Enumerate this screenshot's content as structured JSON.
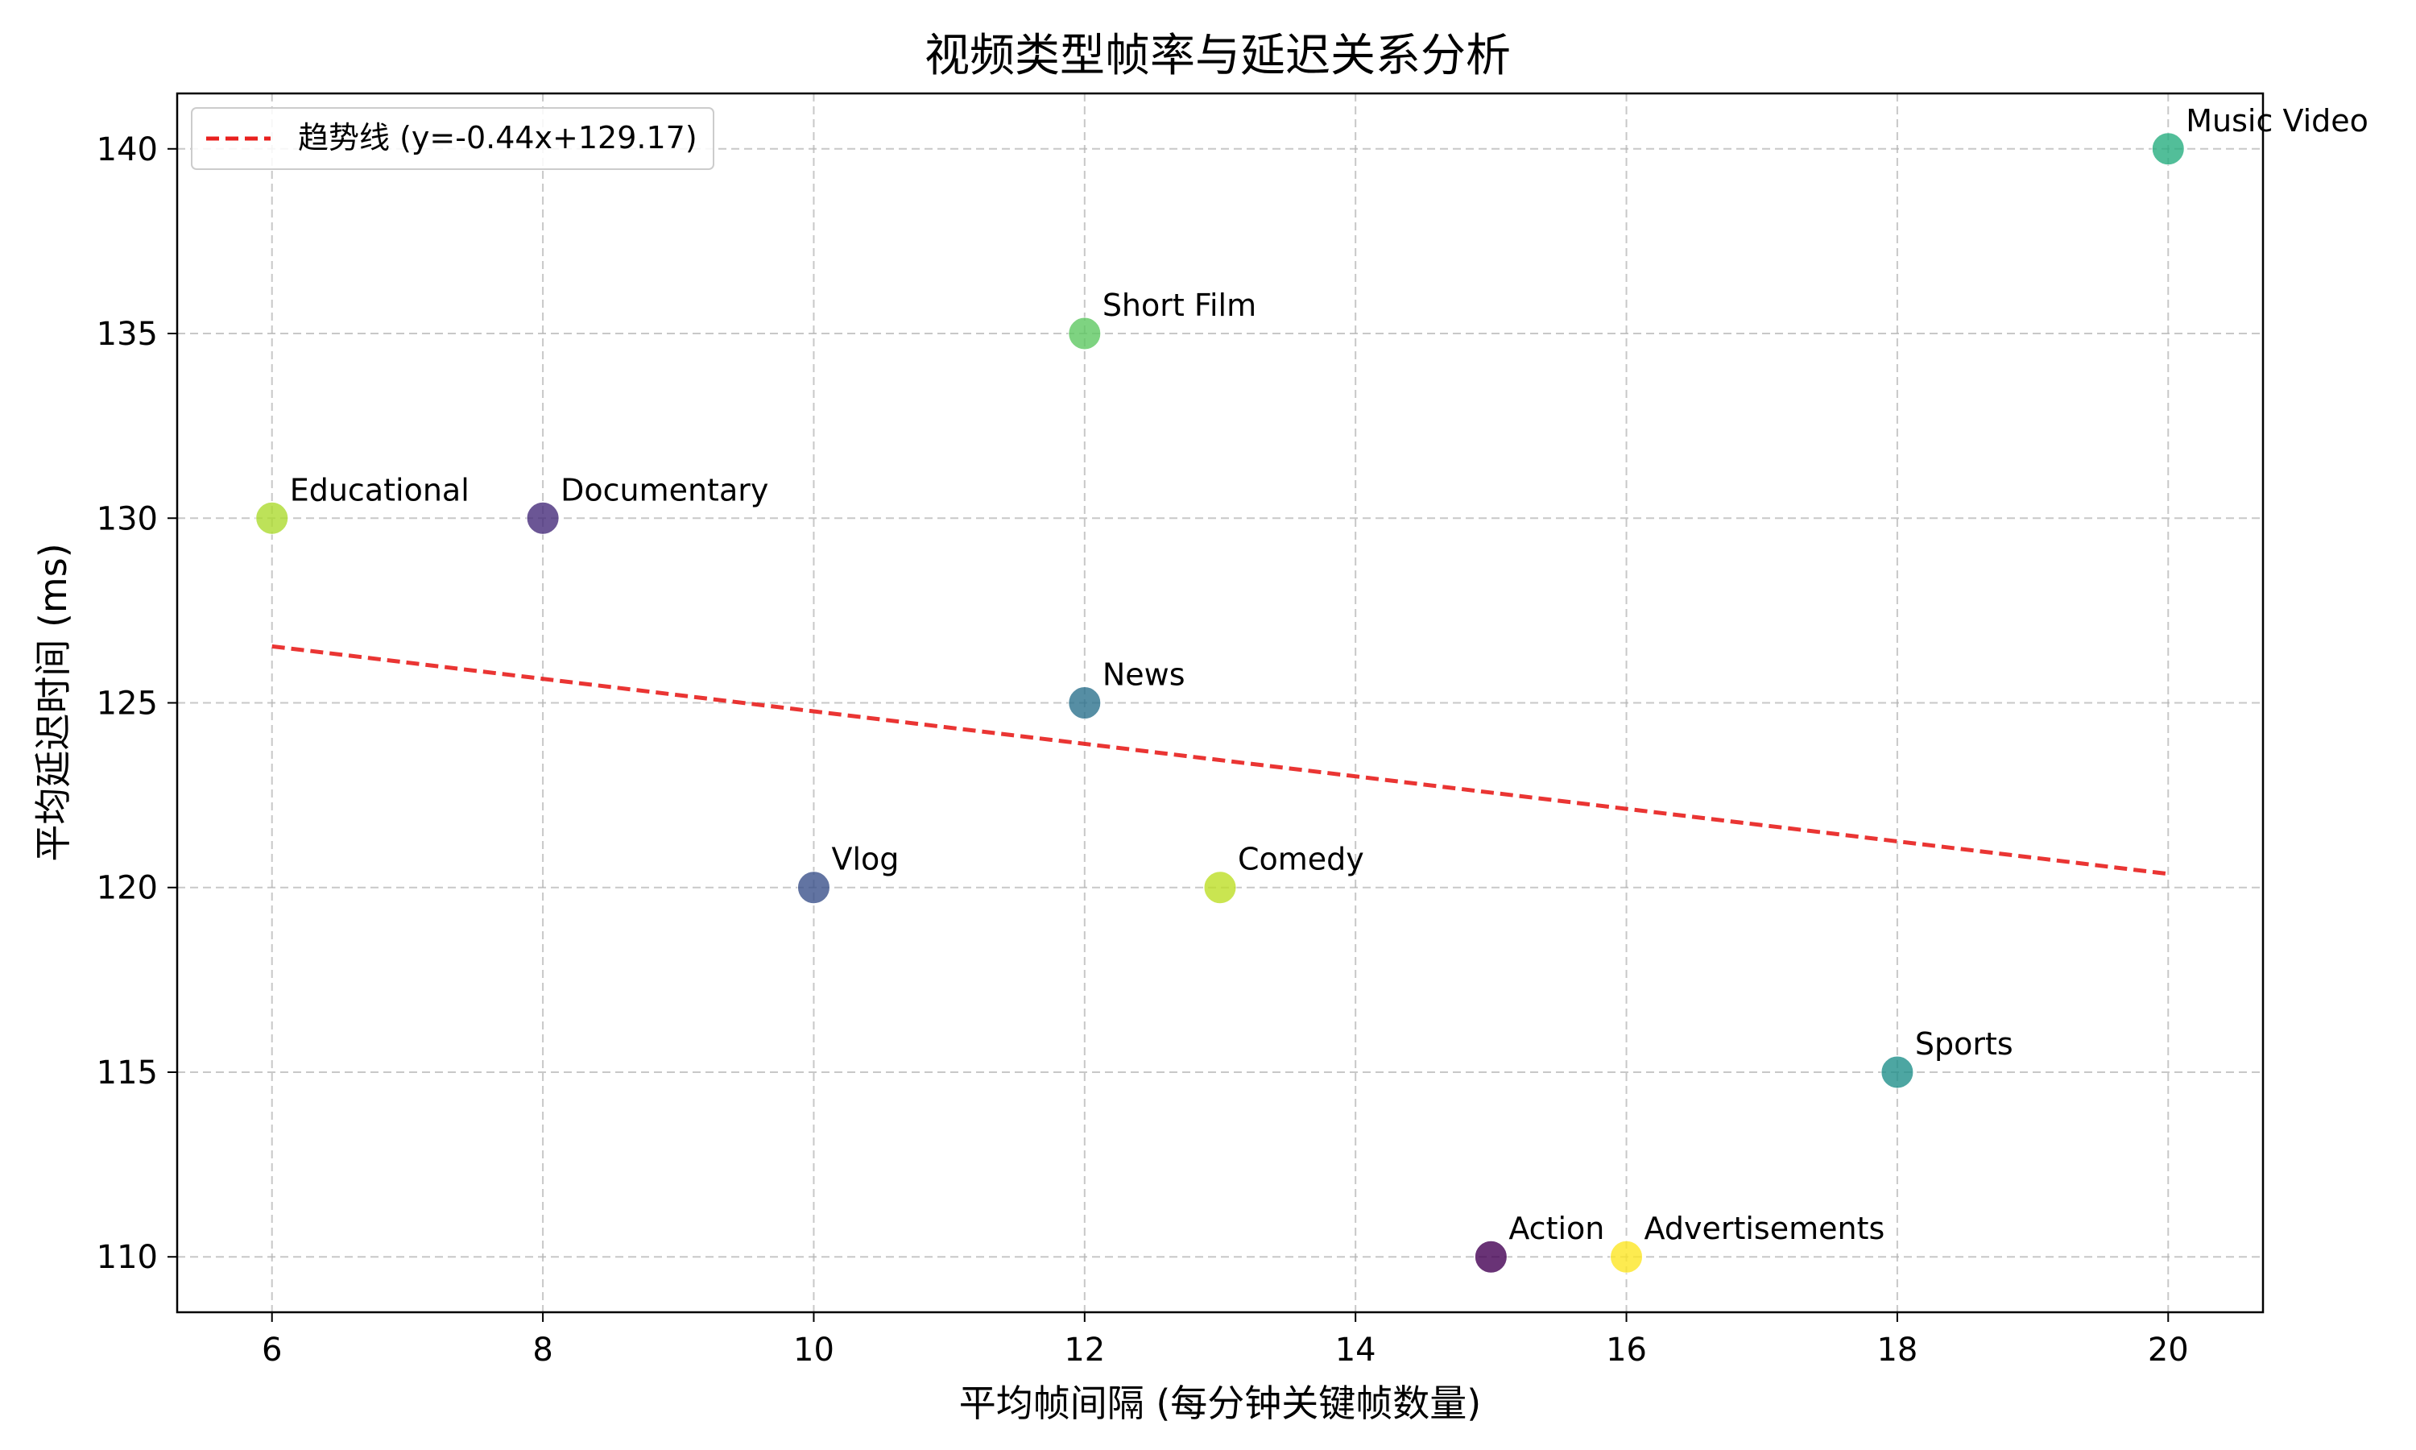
{
  "chart_data": {
    "type": "scatter",
    "title": "视频类型帧率与延迟关系分析",
    "xlabel": "平均帧间隔 (每分钟关键帧数量)",
    "ylabel": "平均延迟时间 (ms)",
    "xlim": [
      5.3,
      20.7
    ],
    "ylim": [
      108.5,
      141.5
    ],
    "xticks": [
      6,
      8,
      10,
      12,
      14,
      16,
      18,
      20
    ],
    "yticks": [
      110,
      115,
      120,
      125,
      130,
      135,
      140
    ],
    "grid": true,
    "legend_position": "top-left",
    "points": [
      {
        "label": "Action",
        "x": 15,
        "y": 110,
        "color": "#440154"
      },
      {
        "label": "Documentary",
        "x": 8,
        "y": 130,
        "color": "#472d7b"
      },
      {
        "label": "Vlog",
        "x": 10,
        "y": 120,
        "color": "#3b528b"
      },
      {
        "label": "News",
        "x": 12,
        "y": 125,
        "color": "#2c728e"
      },
      {
        "label": "Sports",
        "x": 18,
        "y": 115,
        "color": "#21918c"
      },
      {
        "label": "Music Video",
        "x": 20,
        "y": 140,
        "color": "#28ae80"
      },
      {
        "label": "Short Film",
        "x": 12,
        "y": 135,
        "color": "#5ec962"
      },
      {
        "label": "Educational",
        "x": 6,
        "y": 130,
        "color": "#addc30"
      },
      {
        "label": "Comedy",
        "x": 13,
        "y": 120,
        "color": "#bddf26"
      },
      {
        "label": "Advertisements",
        "x": 16,
        "y": 110,
        "color": "#fde725"
      }
    ],
    "trendline": {
      "label": "趋势线 (y=-0.44x+129.17)",
      "slope": -0.44,
      "intercept": 129.17,
      "x_range": [
        6,
        20
      ],
      "color": "#e8201e"
    }
  }
}
